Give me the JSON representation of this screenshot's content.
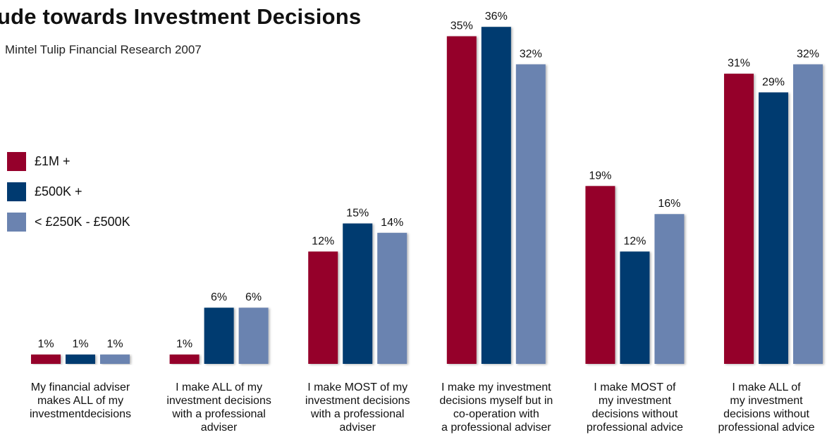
{
  "chart_data": {
    "type": "bar",
    "title": "ude towards Investment Decisions",
    "subtitle": "Mintel Tulip Financial Research 2007",
    "ylim": [
      0,
      36
    ],
    "grid": false,
    "legend_position": "left",
    "categories": [
      "My financial adviser\nmakes ALL of my\ninvestmentdecisions",
      "I make ALL of my\ninvestment decisions\nwith a professional\nadviser",
      "I make MOST of my\ninvestment decisions\nwith a professional\nadviser",
      "I make my investment\ndecisions myself but in\nco-operation with\na professional adviser",
      "I make MOST of\nmy investment\ndecisions without\nprofessional advice",
      "I make ALL of\nmy investment\ndecisions without\nprofessional advice"
    ],
    "series": [
      {
        "name": "£1M +",
        "color": "#95002b",
        "values": [
          1,
          1,
          12,
          35,
          19,
          31
        ],
        "labels": [
          "1%",
          "1%",
          "12%",
          "35%",
          "19%",
          "31%"
        ]
      },
      {
        "name": "£500K +",
        "color": "#003a70",
        "values": [
          1,
          6,
          15,
          36,
          12,
          29
        ],
        "labels": [
          "1%",
          "6%",
          "15%",
          "36%",
          "12%",
          "29%"
        ]
      },
      {
        "name": "< £250K - £500K",
        "color": "#6b83b0",
        "values": [
          1,
          6,
          14,
          32,
          16,
          32
        ],
        "labels": [
          "1%",
          "6%",
          "14%",
          "32%",
          "16%",
          "32%"
        ]
      }
    ]
  }
}
